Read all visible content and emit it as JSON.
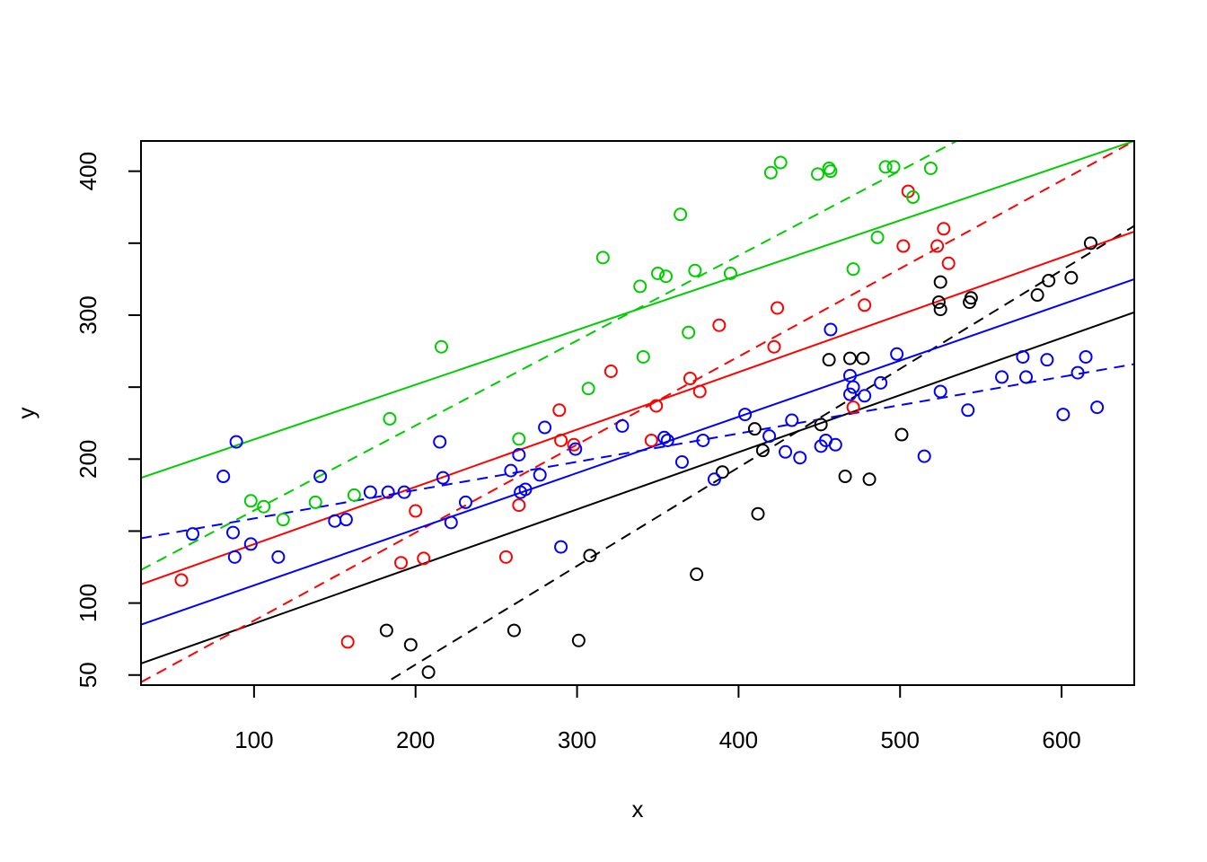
{
  "chart_data": {
    "type": "scatter",
    "title": "",
    "xlabel": "x",
    "ylabel": "y",
    "xlim": [
      30,
      645
    ],
    "ylim": [
      43,
      421
    ],
    "x_ticks": [
      100,
      200,
      300,
      400,
      500,
      600
    ],
    "y_ticks": [
      50,
      100,
      150,
      200,
      250,
      300,
      350,
      400
    ],
    "y_tick_labels": {
      "50": "50",
      "100": "100",
      "200": "200",
      "300": "300",
      "400": "400"
    },
    "grid": false,
    "legend": "none",
    "series": [
      {
        "color": "#000000",
        "points": [
          [
            182,
            81
          ],
          [
            197,
            71
          ],
          [
            208,
            52
          ],
          [
            261,
            81
          ],
          [
            301,
            74
          ],
          [
            308,
            133
          ],
          [
            374,
            120
          ],
          [
            390,
            191
          ],
          [
            410,
            221
          ],
          [
            412,
            162
          ],
          [
            415,
            206
          ],
          [
            451,
            224
          ],
          [
            456,
            269
          ],
          [
            466,
            188
          ],
          [
            469,
            270
          ],
          [
            477,
            270
          ],
          [
            481,
            186
          ],
          [
            501,
            217
          ],
          [
            524,
            309
          ],
          [
            525,
            304
          ],
          [
            525,
            323
          ],
          [
            543,
            309
          ],
          [
            544,
            312
          ],
          [
            585,
            314
          ],
          [
            592,
            324
          ],
          [
            606,
            326
          ],
          [
            618,
            350
          ]
        ],
        "fit_solid": [
          [
            30,
            58
          ],
          [
            645,
            302
          ]
        ],
        "fit_dashed": [
          [
            185,
            47
          ],
          [
            645,
            362
          ]
        ]
      },
      {
        "color": "#ff0000",
        "points": [
          [
            55,
            116
          ],
          [
            158,
            73
          ],
          [
            191,
            128
          ],
          [
            200,
            164
          ],
          [
            205,
            131
          ],
          [
            256,
            132
          ],
          [
            264,
            168
          ],
          [
            289,
            234
          ],
          [
            290,
            213
          ],
          [
            298,
            210
          ],
          [
            321,
            261
          ],
          [
            346,
            213
          ],
          [
            349,
            237
          ],
          [
            370,
            256
          ],
          [
            376,
            247
          ],
          [
            388,
            293
          ],
          [
            422,
            278
          ],
          [
            424,
            305
          ],
          [
            471,
            236
          ],
          [
            478,
            307
          ],
          [
            502,
            348
          ],
          [
            505,
            386
          ],
          [
            523,
            348
          ],
          [
            527,
            360
          ],
          [
            530,
            336
          ]
        ],
        "fit_solid": [
          [
            30,
            113
          ],
          [
            645,
            358
          ]
        ],
        "fit_dashed": [
          [
            30,
            45
          ],
          [
            645,
            421
          ]
        ]
      },
      {
        "color": "#00cd00",
        "points": [
          [
            98,
            171
          ],
          [
            106,
            167
          ],
          [
            118,
            158
          ],
          [
            138,
            170
          ],
          [
            162,
            175
          ],
          [
            184,
            228
          ],
          [
            216,
            278
          ],
          [
            264,
            214
          ],
          [
            307,
            249
          ],
          [
            316,
            340
          ],
          [
            339,
            320
          ],
          [
            341,
            271
          ],
          [
            350,
            329
          ],
          [
            355,
            327
          ],
          [
            364,
            370
          ],
          [
            369,
            288
          ],
          [
            373,
            331
          ],
          [
            395,
            329
          ],
          [
            420,
            399
          ],
          [
            426,
            406
          ],
          [
            449,
            398
          ],
          [
            456,
            402
          ],
          [
            457,
            400
          ],
          [
            471,
            332
          ],
          [
            486,
            354
          ],
          [
            491,
            403
          ],
          [
            496,
            403
          ],
          [
            508,
            382
          ],
          [
            519,
            402
          ]
        ],
        "fit_solid": [
          [
            30,
            187
          ],
          [
            645,
            421
          ]
        ],
        "fit_dashed": [
          [
            30,
            123
          ],
          [
            535,
            421
          ]
        ]
      },
      {
        "color": "#0000ff",
        "points": [
          [
            62,
            148
          ],
          [
            81,
            188
          ],
          [
            87,
            149
          ],
          [
            88,
            132
          ],
          [
            89,
            212
          ],
          [
            98,
            141
          ],
          [
            115,
            132
          ],
          [
            141,
            188
          ],
          [
            150,
            157
          ],
          [
            157,
            158
          ],
          [
            172,
            177
          ],
          [
            183,
            177
          ],
          [
            193,
            177
          ],
          [
            215,
            212
          ],
          [
            217,
            187
          ],
          [
            222,
            156
          ],
          [
            231,
            170
          ],
          [
            259,
            192
          ],
          [
            264,
            203
          ],
          [
            265,
            177
          ],
          [
            268,
            179
          ],
          [
            277,
            189
          ],
          [
            280,
            222
          ],
          [
            290,
            139
          ],
          [
            299,
            207
          ],
          [
            328,
            223
          ],
          [
            354,
            215
          ],
          [
            356,
            213
          ],
          [
            365,
            198
          ],
          [
            378,
            213
          ],
          [
            385,
            186
          ],
          [
            404,
            231
          ],
          [
            419,
            216
          ],
          [
            429,
            205
          ],
          [
            433,
            227
          ],
          [
            438,
            201
          ],
          [
            451,
            209
          ],
          [
            454,
            213
          ],
          [
            457,
            290
          ],
          [
            460,
            210
          ],
          [
            469,
            245
          ],
          [
            469,
            258
          ],
          [
            471,
            250
          ],
          [
            478,
            244
          ],
          [
            488,
            253
          ],
          [
            498,
            273
          ],
          [
            515,
            202
          ],
          [
            525,
            247
          ],
          [
            542,
            234
          ],
          [
            563,
            257
          ],
          [
            576,
            271
          ],
          [
            578,
            257
          ],
          [
            591,
            269
          ],
          [
            601,
            231
          ],
          [
            610,
            260
          ],
          [
            615,
            271
          ],
          [
            622,
            236
          ]
        ],
        "fit_solid": [
          [
            30,
            85
          ],
          [
            645,
            325
          ]
        ],
        "fit_dashed": [
          [
            30,
            145
          ],
          [
            645,
            266
          ]
        ]
      }
    ]
  }
}
